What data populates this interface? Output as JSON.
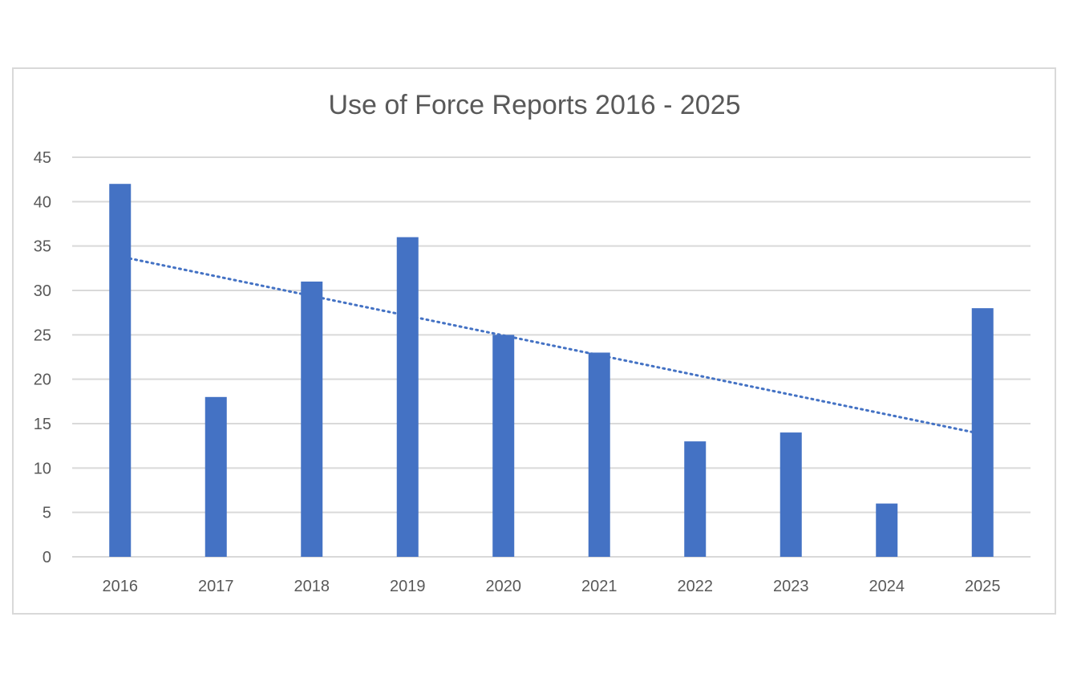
{
  "chart_data": {
    "type": "bar",
    "title": "Use of Force Reports 2016 - 2025",
    "categories": [
      "2016",
      "2017",
      "2018",
      "2019",
      "2020",
      "2021",
      "2022",
      "2023",
      "2024",
      "2025"
    ],
    "values": [
      42,
      18,
      31,
      36,
      25,
      23,
      13,
      14,
      6,
      28
    ],
    "series": [
      {
        "name": "Use of Force Reports",
        "values": [
          42,
          18,
          31,
          36,
          25,
          23,
          13,
          14,
          6,
          28
        ]
      }
    ],
    "trendline": {
      "type": "linear",
      "style": "dotted",
      "start": 33.6,
      "end": 14.0
    },
    "xlabel": "",
    "ylabel": "",
    "ylim": [
      0,
      45
    ],
    "yticks": [
      0,
      5,
      10,
      15,
      20,
      25,
      30,
      35,
      40,
      45
    ],
    "grid": true,
    "legend": "none",
    "colors": {
      "bar": "#4472c4",
      "trend": "#4472c4",
      "grid": "#d9d9d9",
      "text": "#595959"
    }
  }
}
